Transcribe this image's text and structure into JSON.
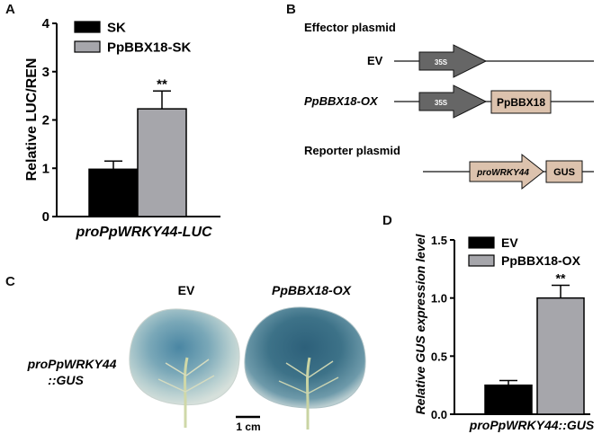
{
  "panels": {
    "a": "A",
    "b": "B",
    "c": "C",
    "d": "D"
  },
  "chart_data": [
    {
      "type": "bar",
      "ylabel": "Relative LUC/REN",
      "xlabel": "proPpWRKY44-LUC",
      "yticks": [
        "0",
        "1",
        "2",
        "3",
        "4"
      ],
      "ylim": [
        0,
        4
      ],
      "series": [
        {
          "name": "SK",
          "values": [
            0.98
          ],
          "error": [
            0.17
          ],
          "color": "#000000",
          "sig": ""
        },
        {
          "name": "PpBBX18-SK",
          "values": [
            2.23
          ],
          "error": [
            0.37
          ],
          "color": "#a6a6ab",
          "sig": "**"
        }
      ]
    },
    {
      "type": "bar",
      "ylabel": "Relative GUS expression level",
      "xlabel": "proPpWRKY44::GUS",
      "yticks": [
        "0.0",
        "0.5",
        "1.0",
        "1.5"
      ],
      "ylim": [
        0,
        1.5
      ],
      "series": [
        {
          "name": "EV",
          "values": [
            0.25
          ],
          "error": [
            0.04
          ],
          "color": "#000000",
          "sig": ""
        },
        {
          "name": "PpBBX18-OX",
          "values": [
            1.0
          ],
          "error": [
            0.11
          ],
          "color": "#a6a6ab",
          "sig": "**"
        }
      ]
    }
  ],
  "diagram": {
    "effector_title": "Effector plasmid",
    "ev_label": "EV",
    "ox_label": "PpBBX18-OX",
    "promoter_35s": "35S",
    "gene_box": "PpBBX18",
    "reporter_title": "Reporter plasmid",
    "reporter_promoter": "proWRKY44",
    "reporter_gene": "GUS"
  },
  "photo": {
    "ev_label": "EV",
    "ox_label": "PpBBX18-OX",
    "row_label_1": "proPpWRKY44",
    "row_label_2": "::GUS",
    "scale_label": "1 cm"
  }
}
